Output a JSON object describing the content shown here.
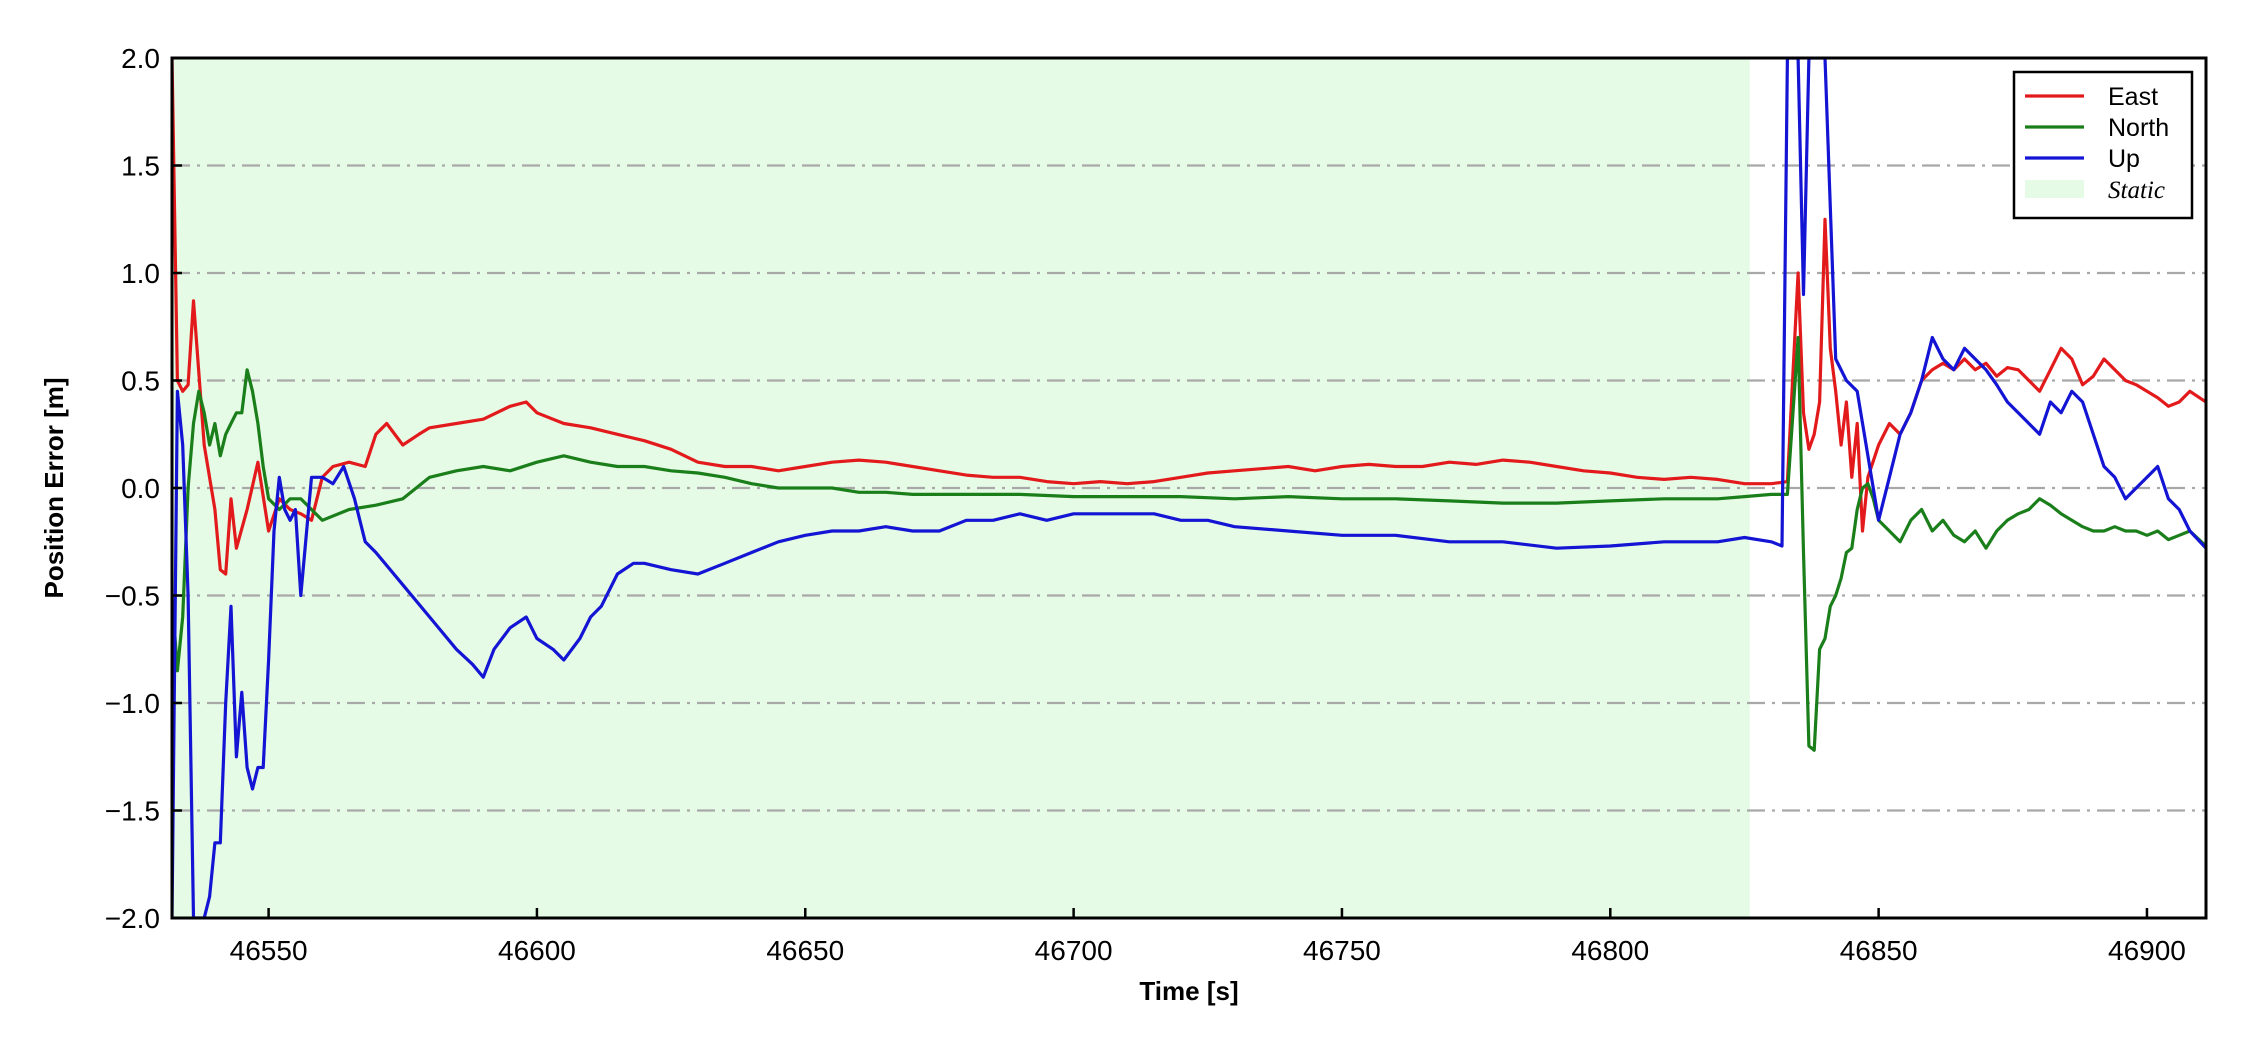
{
  "chart_data": {
    "type": "line",
    "title": "",
    "xlabel": "Time [s]",
    "ylabel": "Position Error [m]",
    "xlim": [
      46532,
      46911
    ],
    "ylim": [
      -2.0,
      2.0
    ],
    "xticks": [
      46550,
      46600,
      46650,
      46700,
      46750,
      46800,
      46850,
      46900
    ],
    "xtick_labels": [
      "46550",
      "46600",
      "46650",
      "46700",
      "46750",
      "46800",
      "46850",
      "46900"
    ],
    "yticks": [
      -2.0,
      -1.5,
      -1.0,
      -0.5,
      0.0,
      0.5,
      1.0,
      1.5,
      2.0
    ],
    "ytick_labels": [
      "−2.0",
      "−1.5",
      "−1.0",
      "−0.5",
      "0.0",
      "0.5",
      "1.0",
      "1.5",
      "2.0"
    ],
    "grid": "horizontal dash-dot",
    "legend_position": "top-right",
    "shaded_region": {
      "label": "Static",
      "x": [
        46532,
        46826
      ],
      "color": "#e6fbe6"
    },
    "series": [
      {
        "name": "East",
        "color": "#e31a1c",
        "x": [
          46532,
          46533,
          46534,
          46535,
          46536,
          46538,
          46540,
          46541,
          46542,
          46543,
          46544,
          46546,
          46548,
          46550,
          46552,
          46554,
          46556,
          46558,
          46560,
          46562,
          46565,
          46568,
          46570,
          46572,
          46575,
          46578,
          46580,
          46585,
          46590,
          46595,
          46598,
          46600,
          46605,
          46610,
          46615,
          46620,
          46625,
          46630,
          46635,
          46640,
          46645,
          46650,
          46655,
          46660,
          46665,
          46670,
          46675,
          46680,
          46685,
          46690,
          46695,
          46700,
          46705,
          46710,
          46715,
          46720,
          46725,
          46730,
          46735,
          46740,
          46745,
          46750,
          46755,
          46760,
          46765,
          46770,
          46775,
          46780,
          46785,
          46790,
          46795,
          46800,
          46805,
          46810,
          46815,
          46820,
          46825,
          46830,
          46833,
          46835,
          46836,
          46837,
          46838,
          46839,
          46840,
          46841,
          46842,
          46843,
          46844,
          46845,
          46846,
          46847,
          46848,
          46850,
          46852,
          46854,
          46856,
          46858,
          46860,
          46862,
          46864,
          46866,
          46868,
          46870,
          46872,
          46874,
          46876,
          46878,
          46880,
          46882,
          46884,
          46886,
          46888,
          46890,
          46892,
          46894,
          46896,
          46898,
          46900,
          46902,
          46904,
          46906,
          46908,
          46911
        ],
        "values": [
          2.0,
          0.5,
          0.45,
          0.48,
          0.87,
          0.2,
          -0.1,
          -0.38,
          -0.4,
          -0.05,
          -0.28,
          -0.1,
          0.12,
          -0.2,
          -0.05,
          -0.1,
          -0.12,
          -0.15,
          0.05,
          0.1,
          0.12,
          0.1,
          0.25,
          0.3,
          0.2,
          0.25,
          0.28,
          0.3,
          0.32,
          0.38,
          0.4,
          0.35,
          0.3,
          0.28,
          0.25,
          0.22,
          0.18,
          0.12,
          0.1,
          0.1,
          0.08,
          0.1,
          0.12,
          0.13,
          0.12,
          0.1,
          0.08,
          0.06,
          0.05,
          0.05,
          0.03,
          0.02,
          0.03,
          0.02,
          0.03,
          0.05,
          0.07,
          0.08,
          0.09,
          0.1,
          0.08,
          0.1,
          0.11,
          0.1,
          0.1,
          0.12,
          0.11,
          0.13,
          0.12,
          0.1,
          0.08,
          0.07,
          0.05,
          0.04,
          0.05,
          0.04,
          0.02,
          0.02,
          0.03,
          1.0,
          0.35,
          0.18,
          0.25,
          0.4,
          1.25,
          0.65,
          0.45,
          0.2,
          0.4,
          0.05,
          0.3,
          -0.2,
          0.05,
          0.2,
          0.3,
          0.25,
          0.35,
          0.5,
          0.55,
          0.58,
          0.55,
          0.6,
          0.55,
          0.58,
          0.52,
          0.56,
          0.55,
          0.5,
          0.45,
          0.55,
          0.65,
          0.6,
          0.48,
          0.52,
          0.6,
          0.55,
          0.5,
          0.48,
          0.45,
          0.42,
          0.38,
          0.4,
          0.45,
          0.4
        ]
      },
      {
        "name": "North",
        "color": "#1a7f1a",
        "x": [
          46532,
          46533,
          46534,
          46535,
          46536,
          46537,
          46538,
          46539,
          46540,
          46541,
          46542,
          46543,
          46544,
          46545,
          46546,
          46547,
          46548,
          46549,
          46550,
          46552,
          46554,
          46556,
          46558,
          46560,
          46565,
          46570,
          46575,
          46580,
          46585,
          46590,
          46595,
          46600,
          46605,
          46610,
          46615,
          46620,
          46625,
          46630,
          46635,
          46640,
          46645,
          46650,
          46655,
          46660,
          46665,
          46670,
          46680,
          46690,
          46700,
          46710,
          46720,
          46730,
          46740,
          46750,
          46760,
          46770,
          46780,
          46790,
          46800,
          46810,
          46820,
          46825,
          46830,
          46833,
          46835,
          46836,
          46837,
          46838,
          46839,
          46840,
          46841,
          46842,
          46843,
          46844,
          46845,
          46846,
          46847,
          46848,
          46849,
          46850,
          46852,
          46854,
          46856,
          46858,
          46860,
          46862,
          46864,
          46866,
          46868,
          46870,
          46872,
          46874,
          46876,
          46878,
          46880,
          46882,
          46884,
          46886,
          46888,
          46890,
          46892,
          46894,
          46896,
          46898,
          46900,
          46902,
          46904,
          46906,
          46908,
          46911
        ],
        "values": [
          -0.5,
          -0.85,
          -0.6,
          0.0,
          0.3,
          0.45,
          0.35,
          0.2,
          0.3,
          0.15,
          0.25,
          0.3,
          0.35,
          0.35,
          0.55,
          0.45,
          0.3,
          0.1,
          -0.05,
          -0.1,
          -0.05,
          -0.05,
          -0.1,
          -0.15,
          -0.1,
          -0.08,
          -0.05,
          0.05,
          0.08,
          0.1,
          0.08,
          0.12,
          0.15,
          0.12,
          0.1,
          0.1,
          0.08,
          0.07,
          0.05,
          0.02,
          0.0,
          0.0,
          0.0,
          -0.02,
          -0.02,
          -0.03,
          -0.03,
          -0.03,
          -0.04,
          -0.04,
          -0.04,
          -0.05,
          -0.04,
          -0.05,
          -0.05,
          -0.06,
          -0.07,
          -0.07,
          -0.06,
          -0.05,
          -0.05,
          -0.04,
          -0.03,
          -0.03,
          0.7,
          -0.3,
          -1.2,
          -1.22,
          -0.75,
          -0.7,
          -0.55,
          -0.5,
          -0.42,
          -0.3,
          -0.28,
          -0.1,
          0.0,
          0.02,
          -0.05,
          -0.15,
          -0.2,
          -0.25,
          -0.15,
          -0.1,
          -0.2,
          -0.15,
          -0.22,
          -0.25,
          -0.2,
          -0.28,
          -0.2,
          -0.15,
          -0.12,
          -0.1,
          -0.05,
          -0.08,
          -0.12,
          -0.15,
          -0.18,
          -0.2,
          -0.2,
          -0.18,
          -0.2,
          -0.2,
          -0.22,
          -0.2,
          -0.24,
          -0.22,
          -0.2,
          -0.27
        ]
      },
      {
        "name": "Up",
        "color": "#1414d4",
        "x": [
          46532,
          46533,
          46534,
          46535,
          46536,
          46537,
          46538,
          46539,
          46540,
          46541,
          46542,
          46543,
          46544,
          46545,
          46546,
          46547,
          46548,
          46549,
          46550,
          46551,
          46552,
          46553,
          46554,
          46555,
          46556,
          46558,
          46560,
          46562,
          46564,
          46566,
          46568,
          46570,
          46575,
          46580,
          46585,
          46588,
          46590,
          46592,
          46595,
          46598,
          46600,
          46603,
          46605,
          46608,
          46610,
          46612,
          46615,
          46618,
          46620,
          46625,
          46630,
          46635,
          46640,
          46645,
          46650,
          46655,
          46660,
          46665,
          46670,
          46675,
          46680,
          46685,
          46690,
          46695,
          46700,
          46705,
          46710,
          46715,
          46720,
          46725,
          46730,
          46740,
          46750,
          46760,
          46770,
          46780,
          46790,
          46800,
          46810,
          46820,
          46825,
          46830,
          46832,
          46833,
          46834,
          46835,
          46836,
          46837,
          46838,
          46839,
          46840,
          46842,
          46844,
          46846,
          46848,
          46850,
          46852,
          46854,
          46856,
          46858,
          46860,
          46862,
          46864,
          46866,
          46868,
          46870,
          46872,
          46874,
          46876,
          46878,
          46880,
          46882,
          46884,
          46886,
          46888,
          46890,
          46892,
          46894,
          46896,
          46898,
          46900,
          46902,
          46904,
          46906,
          46908,
          46911
        ],
        "values": [
          -2.0,
          0.45,
          0.2,
          -0.5,
          -2.0,
          -2.0,
          -2.0,
          -1.9,
          -1.65,
          -1.65,
          -1.0,
          -0.55,
          -1.25,
          -0.95,
          -1.3,
          -1.4,
          -1.3,
          -1.3,
          -0.8,
          -0.2,
          0.05,
          -0.1,
          -0.15,
          -0.1,
          -0.5,
          0.05,
          0.05,
          0.02,
          0.1,
          -0.05,
          -0.25,
          -0.3,
          -0.45,
          -0.6,
          -0.75,
          -0.82,
          -0.88,
          -0.75,
          -0.65,
          -0.6,
          -0.7,
          -0.75,
          -0.8,
          -0.7,
          -0.6,
          -0.55,
          -0.4,
          -0.35,
          -0.35,
          -0.38,
          -0.4,
          -0.35,
          -0.3,
          -0.25,
          -0.22,
          -0.2,
          -0.2,
          -0.18,
          -0.2,
          -0.2,
          -0.15,
          -0.15,
          -0.12,
          -0.15,
          -0.12,
          -0.12,
          -0.12,
          -0.12,
          -0.15,
          -0.15,
          -0.18,
          -0.2,
          -0.22,
          -0.22,
          -0.25,
          -0.25,
          -0.28,
          -0.27,
          -0.25,
          -0.25,
          -0.23,
          -0.25,
          -0.27,
          2.0,
          2.0,
          2.0,
          0.9,
          2.0,
          2.0,
          2.0,
          2.0,
          0.6,
          0.5,
          0.45,
          0.15,
          -0.15,
          0.05,
          0.25,
          0.35,
          0.5,
          0.7,
          0.6,
          0.55,
          0.65,
          0.6,
          0.55,
          0.48,
          0.4,
          0.35,
          0.3,
          0.25,
          0.4,
          0.35,
          0.45,
          0.4,
          0.25,
          0.1,
          0.05,
          -0.05,
          0.0,
          0.05,
          0.1,
          -0.05,
          -0.1,
          -0.2,
          -0.28
        ]
      }
    ]
  }
}
